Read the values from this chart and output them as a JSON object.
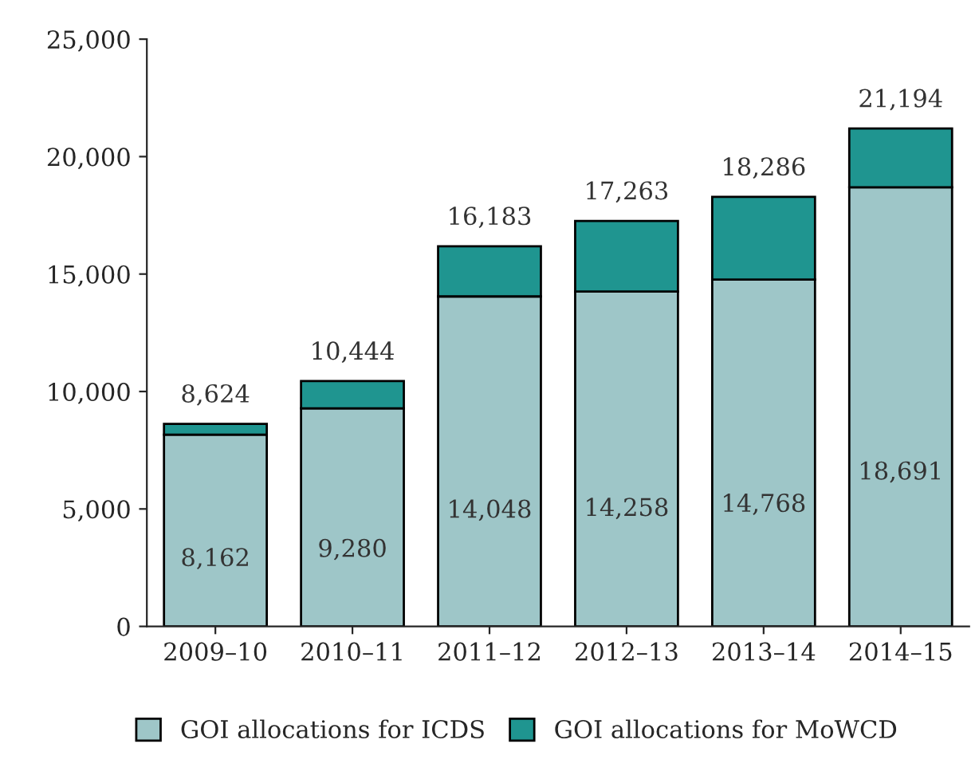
{
  "chart_data": {
    "type": "bar",
    "stacked": true,
    "categories": [
      "2009–10",
      "2010–11",
      "2011–12",
      "2012–13",
      "2013–14",
      "2014–15"
    ],
    "series": [
      {
        "name": "GOI allocations for ICDS",
        "color": "#9ec6c8",
        "values": [
          8162,
          9280,
          14048,
          14258,
          14768,
          18691
        ],
        "value_labels": [
          "8,162",
          "9,280",
          "14,048",
          "14,258",
          "14,768",
          "18,691"
        ]
      },
      {
        "name": "GOI allocations for MoWCD",
        "color": "#1f9590",
        "values": [
          462,
          1164,
          2135,
          3005,
          3518,
          2503
        ]
      }
    ],
    "totals": [
      "8,624",
      "10,444",
      "16,183",
      "17,263",
      "18,286",
      "21,194"
    ],
    "ylim": [
      0,
      25000
    ],
    "yticks": [
      {
        "value": 0,
        "label": "0"
      },
      {
        "value": 5000,
        "label": "5,000"
      },
      {
        "value": 10000,
        "label": "10,000"
      },
      {
        "value": 15000,
        "label": "15,000"
      },
      {
        "value": 20000,
        "label": "20,000"
      },
      {
        "value": 25000,
        "label": "25,000"
      }
    ],
    "grid": false,
    "legend": "bottom"
  }
}
